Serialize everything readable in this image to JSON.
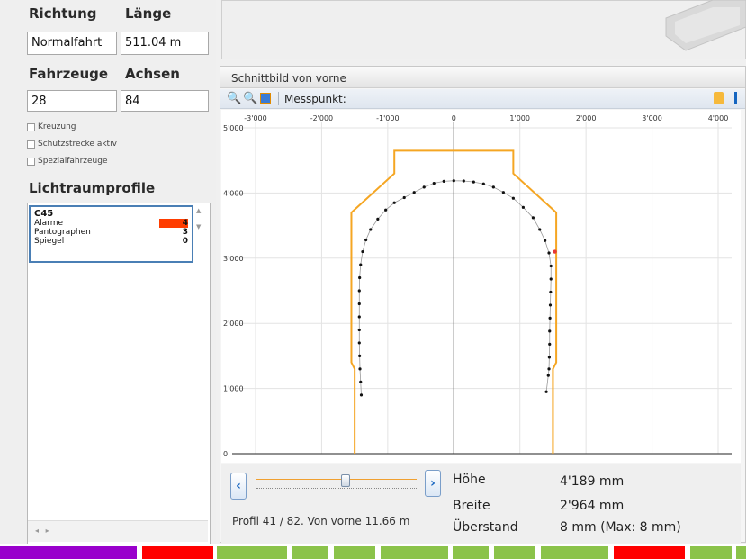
{
  "left": {
    "richtung_label": "Richtung",
    "laenge_label": "Länge",
    "richtung_value": "Normalfahrt",
    "laenge_value": "511.04 m",
    "fahrzeuge_label": "Fahrzeuge",
    "achsen_label": "Achsen",
    "fahrzeuge_value": "28",
    "achsen_value": "84",
    "checkboxes": [
      "Kreuzung",
      "Schutzstrecke aktiv",
      "Spezialfahrzeuge"
    ],
    "lichtraum_title": "Lichtraumprofile",
    "profile": {
      "name": "C45",
      "rows": [
        {
          "label": "Alarme",
          "value": "4"
        },
        {
          "label": "Pantographen",
          "value": "3"
        },
        {
          "label": "Spiegel",
          "value": "0"
        }
      ]
    }
  },
  "panel": {
    "title": "Schnittbild von vorne",
    "messpunkt_label": "Messpunkt:",
    "profil_text": "Profil 41 / 82. Von vorne 11.66 m",
    "slider_value": 0.55,
    "hoehe_label": "Höhe",
    "hoehe_value": "4'189 mm",
    "breite_label": "Breite",
    "breite_value": "2'964 mm",
    "ueberstand_label": "Überstand",
    "ueberstand_value": "8 mm (Max: 8 mm)"
  },
  "chart_data": {
    "type": "scatter",
    "x_ticks": [
      "-3'000",
      "-2'000",
      "-1'000",
      "0",
      "1'000",
      "2'000",
      "3'000",
      "4'000"
    ],
    "y_ticks": [
      "5'000",
      "4'000",
      "3'000",
      "2'000",
      "1'000",
      "0"
    ],
    "xlim": [
      -3000,
      4000
    ],
    "ylim": [
      0,
      5000
    ],
    "clearance_profile": [
      [
        -1500,
        0
      ],
      [
        -1500,
        1300
      ],
      [
        -1550,
        1400
      ],
      [
        -1550,
        3700
      ],
      [
        -900,
        4300
      ],
      [
        -900,
        4650
      ],
      [
        900,
        4650
      ],
      [
        900,
        4300
      ],
      [
        1550,
        3700
      ],
      [
        1550,
        1400
      ],
      [
        1500,
        1300
      ],
      [
        1500,
        0
      ]
    ],
    "measured_points": [
      [
        -1400,
        900
      ],
      [
        -1410,
        1100
      ],
      [
        -1420,
        1300
      ],
      [
        -1425,
        1500
      ],
      [
        -1430,
        1700
      ],
      [
        -1430,
        1900
      ],
      [
        -1430,
        2100
      ],
      [
        -1430,
        2300
      ],
      [
        -1430,
        2500
      ],
      [
        -1425,
        2700
      ],
      [
        -1410,
        2900
      ],
      [
        -1380,
        3100
      ],
      [
        -1330,
        3280
      ],
      [
        -1260,
        3440
      ],
      [
        -1150,
        3600
      ],
      [
        -1030,
        3740
      ],
      [
        -900,
        3850
      ],
      [
        -750,
        3930
      ],
      [
        -600,
        4010
      ],
      [
        -450,
        4090
      ],
      [
        -300,
        4150
      ],
      [
        -150,
        4180
      ],
      [
        0,
        4189
      ],
      [
        150,
        4185
      ],
      [
        300,
        4170
      ],
      [
        450,
        4140
      ],
      [
        600,
        4090
      ],
      [
        750,
        4010
      ],
      [
        900,
        3920
      ],
      [
        1050,
        3780
      ],
      [
        1200,
        3620
      ],
      [
        1300,
        3440
      ],
      [
        1380,
        3270
      ],
      [
        1440,
        3080
      ],
      [
        1470,
        2880
      ],
      [
        1470,
        2680
      ],
      [
        1465,
        2480
      ],
      [
        1460,
        2280
      ],
      [
        1455,
        2080
      ],
      [
        1450,
        1880
      ],
      [
        1450,
        1680
      ],
      [
        1445,
        1480
      ],
      [
        1440,
        1300
      ],
      [
        1430,
        1200
      ],
      [
        1400,
        950
      ]
    ],
    "alarm_point": [
      1530,
      3100
    ],
    "colors": {
      "profile": "#f5a623",
      "points": "#111111",
      "alarm": "#e53935",
      "grid": "#e3e3e3"
    }
  },
  "statusbar": {
    "segments": [
      {
        "color": "#9900cc",
        "from": 0.0,
        "to": 0.183
      },
      {
        "color": "#ff0000",
        "from": 0.19,
        "to": 0.285
      },
      {
        "color": "#8bc34a",
        "from": 0.291,
        "to": 0.385
      },
      {
        "color": "#8bc34a",
        "from": 0.392,
        "to": 0.44
      },
      {
        "color": "#8bc34a",
        "from": 0.447,
        "to": 0.502
      },
      {
        "color": "#8bc34a",
        "from": 0.51,
        "to": 0.6
      },
      {
        "color": "#8bc34a",
        "from": 0.607,
        "to": 0.655
      },
      {
        "color": "#8bc34a",
        "from": 0.662,
        "to": 0.718
      },
      {
        "color": "#8bc34a",
        "from": 0.725,
        "to": 0.815
      },
      {
        "color": "#ff0000",
        "from": 0.823,
        "to": 0.918
      },
      {
        "color": "#8bc34a",
        "from": 0.925,
        "to": 0.98
      },
      {
        "color": "#8bc34a",
        "from": 0.987,
        "to": 1.0
      }
    ]
  }
}
